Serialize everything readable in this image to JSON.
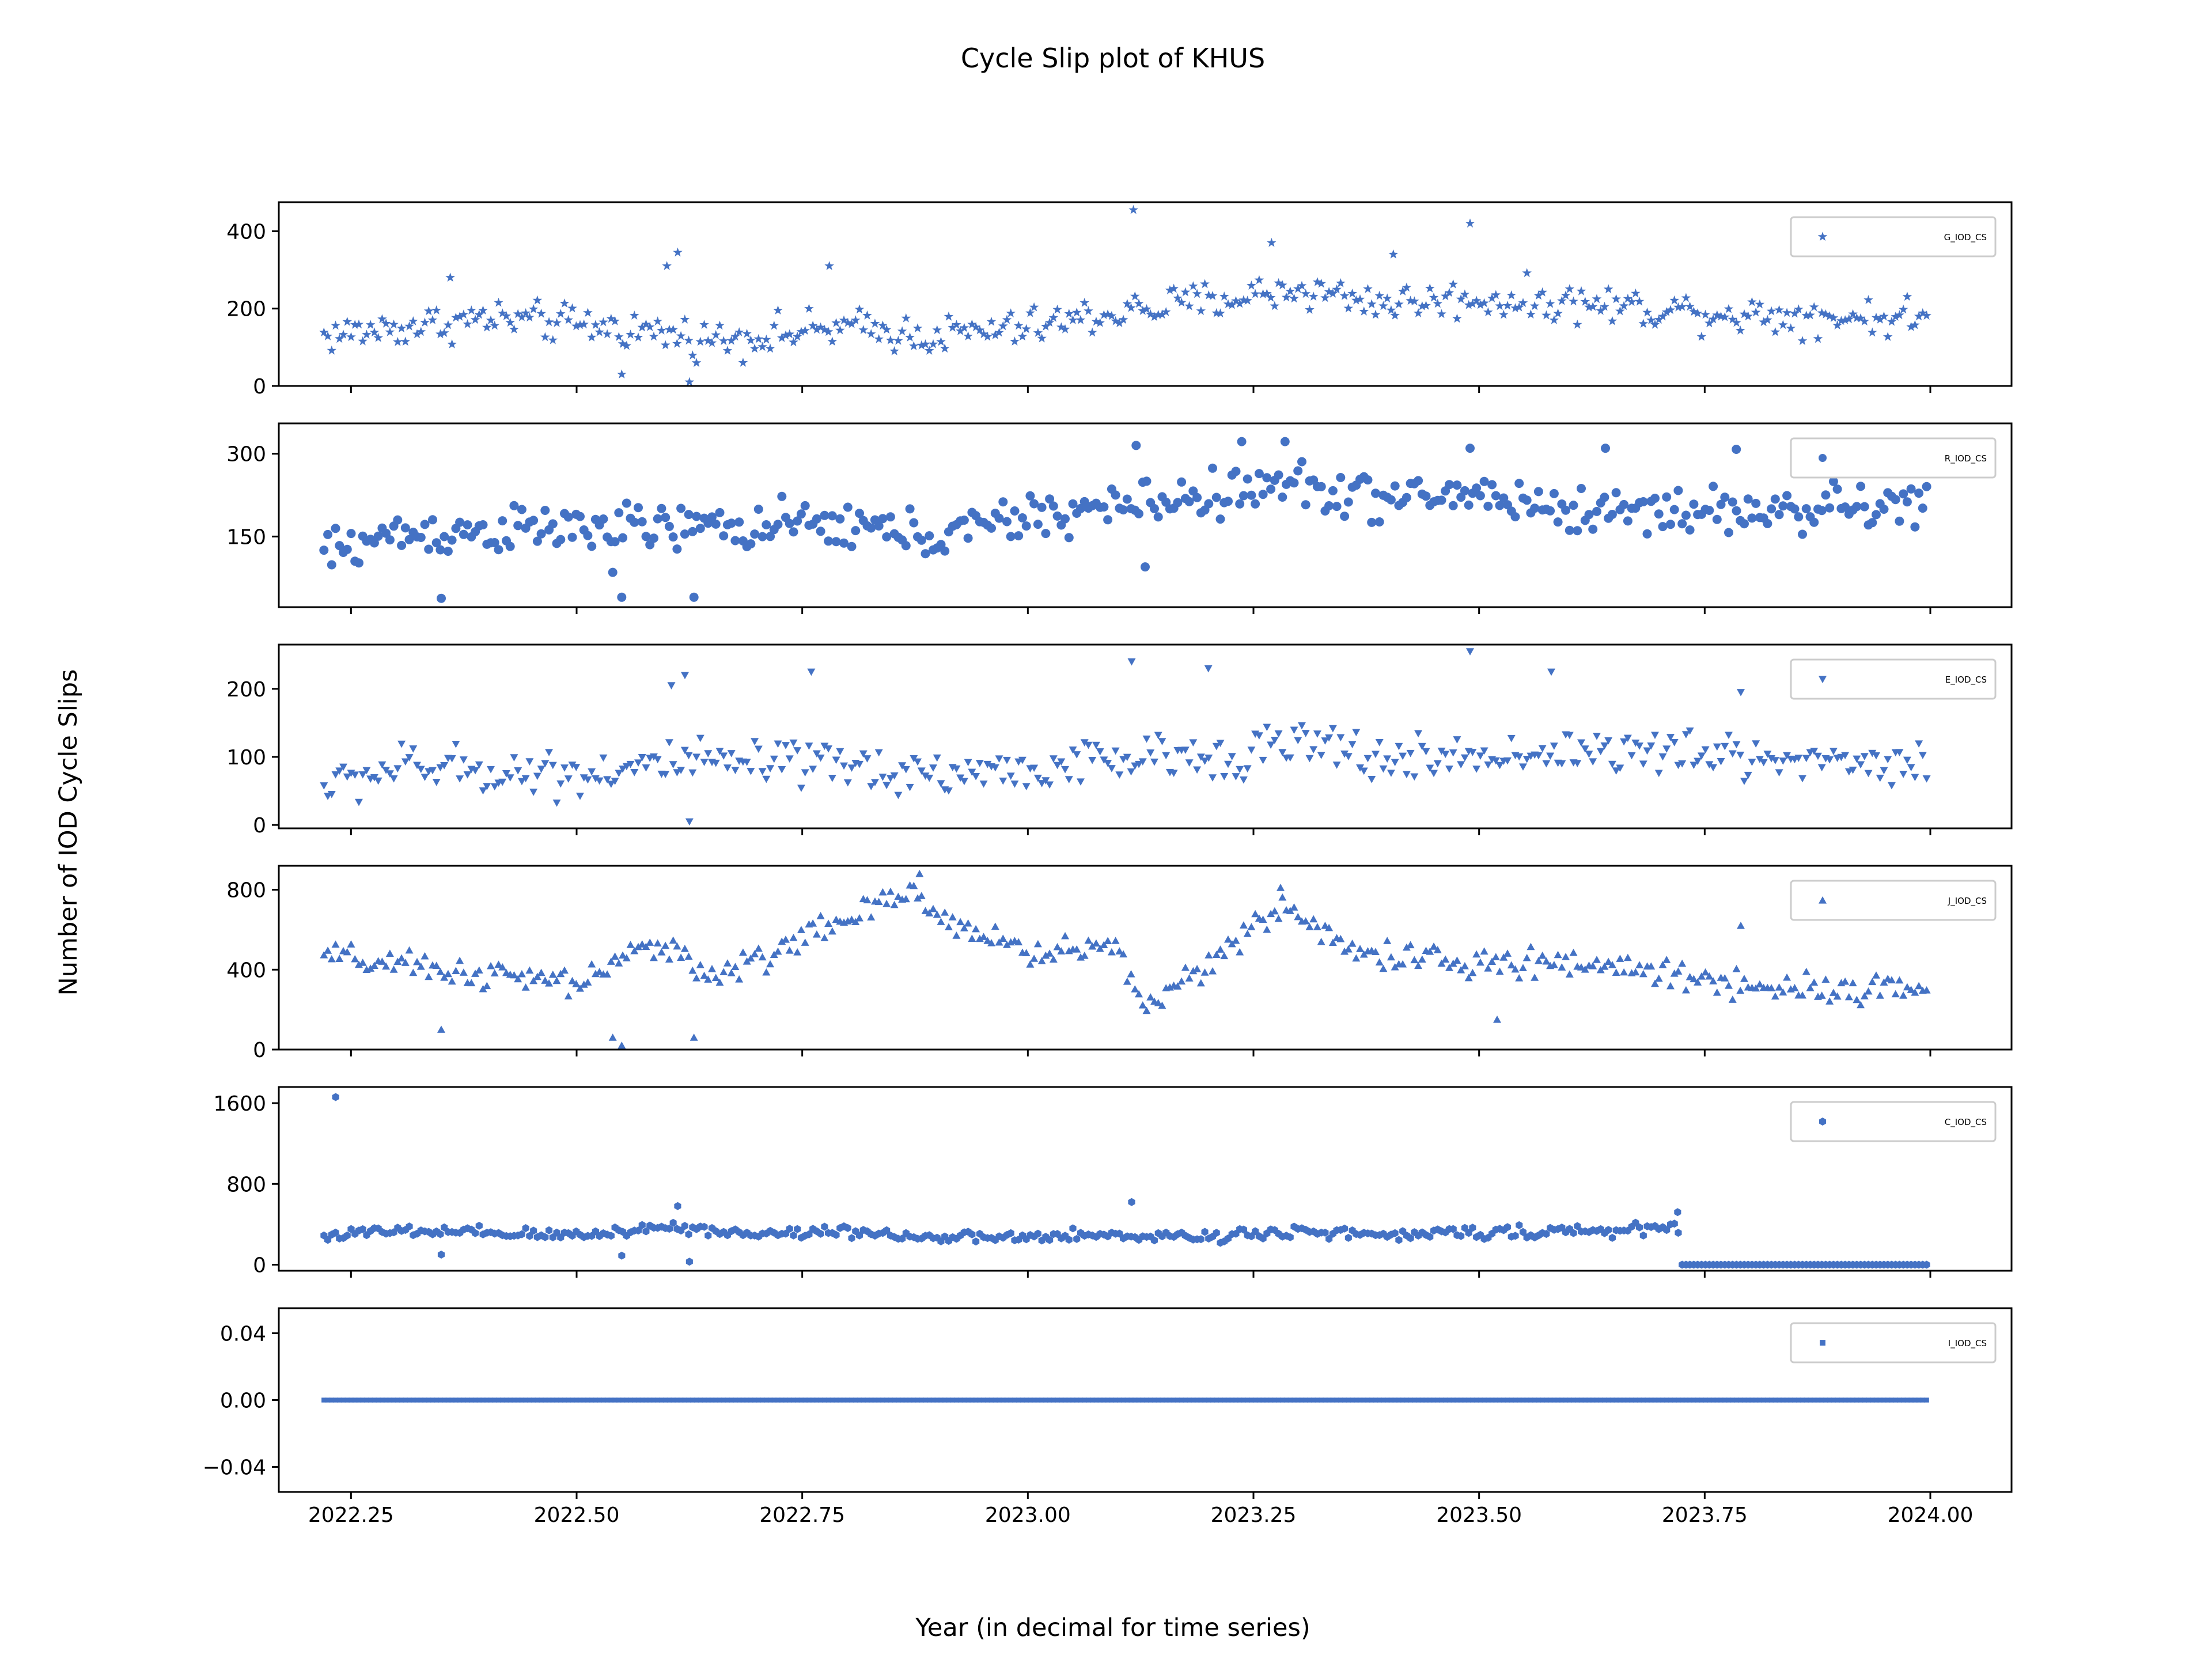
{
  "colors": {
    "marker": "#4472c4",
    "axis": "#000000",
    "legend_border": "#cccccc"
  },
  "figure": {
    "suptitle": "Cycle Slip plot of KHUS",
    "ylabel": "Number of IOD Cycle Slips",
    "xlabel": "Year (in decimal for time series)"
  },
  "chart_data": {
    "type": "scatter",
    "title": "Cycle Slip plot of KHUS",
    "xlabel": "Year (in decimal for time series)",
    "ylabel": "Number of IOD Cycle Slips",
    "x_range": [
      2022.22,
      2024.0
    ],
    "xlim": [
      2022.17,
      2024.09
    ],
    "xticks": [
      2022.25,
      2022.5,
      2022.75,
      2023.0,
      2023.25,
      2023.5,
      2023.75,
      2024.0
    ],
    "xtick_labels": [
      "2022.25",
      "2022.50",
      "2022.75",
      "2023.00",
      "2023.25",
      "2023.50",
      "2023.75",
      "2024.00"
    ],
    "legend_position": "upper right",
    "grid": false,
    "panels": [
      {
        "legend": "G_IOD_CS",
        "marker": "star",
        "ylim": [
          0,
          475
        ],
        "yticks": [
          0,
          200,
          400
        ],
        "ytick_labels": [
          "0",
          "200",
          "400"
        ],
        "trend": [
          [
            2022.22,
            130
          ],
          [
            2022.4,
            175
          ],
          [
            2022.55,
            150
          ],
          [
            2022.65,
            120
          ],
          [
            2022.8,
            150
          ],
          [
            2022.9,
            130
          ],
          [
            2023.0,
            150
          ],
          [
            2023.1,
            190
          ],
          [
            2023.2,
            220
          ],
          [
            2023.3,
            250
          ],
          [
            2023.4,
            215
          ],
          [
            2023.5,
            225
          ],
          [
            2023.6,
            215
          ],
          [
            2023.7,
            200
          ],
          [
            2023.8,
            185
          ],
          [
            2024.0,
            175
          ]
        ],
        "spread": 38,
        "outliers": [
          [
            2023.117,
            455
          ],
          [
            2023.49,
            420
          ],
          [
            2022.625,
            10
          ],
          [
            2022.55,
            30
          ],
          [
            2022.612,
            345
          ],
          [
            2022.6,
            310
          ],
          [
            2023.27,
            370
          ],
          [
            2023.405,
            340
          ],
          [
            2022.36,
            280
          ],
          [
            2022.78,
            310
          ]
        ]
      },
      {
        "legend": "R_IOD_CS",
        "marker": "circle",
        "ylim": [
          22,
          355
        ],
        "yticks": [
          150,
          300
        ],
        "ytick_labels": [
          "150",
          "300"
        ],
        "trend": [
          [
            2022.22,
            120
          ],
          [
            2022.3,
            155
          ],
          [
            2022.5,
            165
          ],
          [
            2022.6,
            165
          ],
          [
            2022.8,
            170
          ],
          [
            2022.9,
            150
          ],
          [
            2023.0,
            185
          ],
          [
            2023.1,
            205
          ],
          [
            2023.2,
            225
          ],
          [
            2023.3,
            245
          ],
          [
            2023.4,
            215
          ],
          [
            2023.5,
            230
          ],
          [
            2023.6,
            195
          ],
          [
            2023.7,
            200
          ],
          [
            2023.8,
            195
          ],
          [
            2024.0,
            210
          ]
        ],
        "spread": 32,
        "outliers": [
          [
            2023.12,
            315
          ],
          [
            2023.237,
            322
          ],
          [
            2023.285,
            322
          ],
          [
            2023.49,
            310
          ],
          [
            2023.64,
            310
          ],
          [
            2023.785,
            308
          ],
          [
            2022.35,
            38
          ],
          [
            2022.55,
            40
          ],
          [
            2022.63,
            40
          ],
          [
            2023.13,
            95
          ],
          [
            2022.54,
            85
          ]
        ]
      },
      {
        "legend": "E_IOD_CS",
        "marker": "triangle-down",
        "ylim": [
          -5,
          265
        ],
        "yticks": [
          0,
          100,
          200
        ],
        "ytick_labels": [
          "0",
          "100",
          "200"
        ],
        "trend": [
          [
            2022.22,
            55
          ],
          [
            2022.3,
            85
          ],
          [
            2022.5,
            75
          ],
          [
            2022.6,
            90
          ],
          [
            2022.8,
            85
          ],
          [
            2022.9,
            75
          ],
          [
            2023.0,
            80
          ],
          [
            2023.1,
            95
          ],
          [
            2023.2,
            100
          ],
          [
            2023.3,
            120
          ],
          [
            2023.4,
            95
          ],
          [
            2023.5,
            100
          ],
          [
            2023.6,
            110
          ],
          [
            2023.7,
            105
          ],
          [
            2023.8,
            100
          ],
          [
            2024.0,
            90
          ]
        ],
        "spread": 26,
        "outliers": [
          [
            2023.115,
            240
          ],
          [
            2023.49,
            255
          ],
          [
            2023.2,
            230
          ],
          [
            2022.62,
            220
          ],
          [
            2022.605,
            205
          ],
          [
            2022.76,
            225
          ],
          [
            2023.58,
            225
          ],
          [
            2022.625,
            5
          ],
          [
            2023.79,
            195
          ]
        ]
      },
      {
        "legend": "J_IOD_CS",
        "marker": "triangle-up",
        "ylim": [
          0,
          920
        ],
        "yticks": [
          0,
          400,
          800
        ],
        "ytick_labels": [
          "0",
          "400",
          "800"
        ],
        "trend": [
          [
            2022.22,
            470
          ],
          [
            2022.3,
            420
          ],
          [
            2022.5,
            330
          ],
          [
            2022.6,
            550
          ],
          [
            2022.65,
            350
          ],
          [
            2022.75,
            560
          ],
          [
            2022.87,
            780
          ],
          [
            2022.9,
            680
          ],
          [
            2023.0,
            480
          ],
          [
            2023.1,
            520
          ],
          [
            2023.13,
            200
          ],
          [
            2023.2,
            450
          ],
          [
            2023.29,
            720
          ],
          [
            2023.35,
            500
          ],
          [
            2023.5,
            420
          ],
          [
            2023.6,
            440
          ],
          [
            2023.7,
            390
          ],
          [
            2023.8,
            320
          ],
          [
            2024.0,
            300
          ]
        ],
        "spread": 55,
        "outliers": [
          [
            2022.35,
            100
          ],
          [
            2022.55,
            20
          ],
          [
            2022.54,
            60
          ],
          [
            2022.63,
            60
          ],
          [
            2023.52,
            150
          ],
          [
            2023.79,
            620
          ],
          [
            2022.88,
            880
          ],
          [
            2023.28,
            810
          ]
        ]
      },
      {
        "legend": "C_IOD_CS",
        "marker": "hexagon",
        "ylim": [
          -60,
          1760
        ],
        "yticks": [
          0,
          800,
          1600
        ],
        "ytick_labels": [
          "0",
          "800",
          "1600"
        ],
        "trend": [
          [
            2022.22,
            290
          ],
          [
            2022.3,
            330
          ],
          [
            2022.5,
            290
          ],
          [
            2022.6,
            380
          ],
          [
            2022.7,
            300
          ],
          [
            2022.8,
            340
          ],
          [
            2022.9,
            260
          ],
          [
            2023.0,
            270
          ],
          [
            2023.1,
            290
          ],
          [
            2023.2,
            280
          ],
          [
            2023.3,
            340
          ],
          [
            2023.4,
            280
          ],
          [
            2023.5,
            330
          ],
          [
            2023.6,
            320
          ],
          [
            2023.7,
            360
          ],
          [
            2023.722,
            380
          ]
        ],
        "spread": 45,
        "zero_from": 2023.725,
        "outliers": [
          [
            2022.233,
            1660
          ],
          [
            2023.115,
            620
          ],
          [
            2022.612,
            580
          ],
          [
            2022.625,
            30
          ],
          [
            2023.72,
            520
          ],
          [
            2022.35,
            100
          ],
          [
            2022.55,
            90
          ]
        ]
      },
      {
        "legend": "I_IOD_CS",
        "marker": "square",
        "ylim": [
          -0.055,
          0.055
        ],
        "yticks": [
          -0.04,
          0.0,
          0.04
        ],
        "ytick_labels": [
          "−0.04",
          "0.00",
          "0.04"
        ],
        "constant": 0.0
      }
    ]
  }
}
